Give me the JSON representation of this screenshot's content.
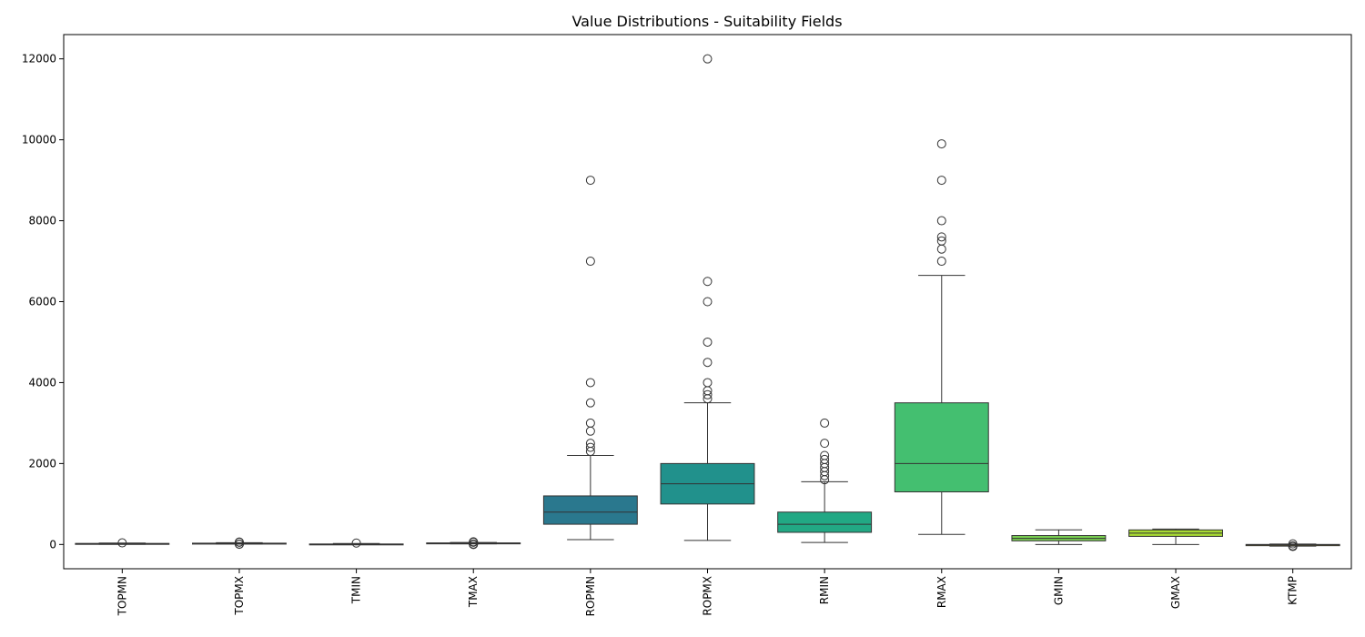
{
  "chart_data": {
    "type": "box",
    "title": "Value Distributions - Suitability Fields",
    "xlabel": "",
    "ylabel": "",
    "ylim": [
      -600,
      12600
    ],
    "yticks": [
      0,
      2000,
      4000,
      6000,
      8000,
      10000,
      12000
    ],
    "categories": [
      "TOPMN",
      "TOPMX",
      "TMIN",
      "TMAX",
      "ROPMN",
      "ROPMX",
      "RMIN",
      "RMAX",
      "GMIN",
      "GMAX",
      "KTMP"
    ],
    "box_colors": [
      "#45085b",
      "#482475",
      "#414487",
      "#355f8d",
      "#2a788e",
      "#21918c",
      "#22a884",
      "#44bf70",
      "#7ad151",
      "#a8db34",
      "#fde725"
    ],
    "boxes": [
      {
        "q1": 12,
        "median": 20,
        "q3": 25,
        "whisker_low": 5,
        "whisker_high": 35,
        "outliers": [
          40
        ]
      },
      {
        "q1": 22,
        "median": 28,
        "q3": 32,
        "whisker_low": 12,
        "whisker_high": 45,
        "outliers": [
          5,
          10,
          55,
          60
        ]
      },
      {
        "q1": 2,
        "median": 8,
        "q3": 12,
        "whisker_low": -5,
        "whisker_high": 25,
        "outliers": [
          35
        ]
      },
      {
        "q1": 25,
        "median": 32,
        "q3": 38,
        "whisker_low": 15,
        "whisker_high": 50,
        "outliers": [
          0,
          5,
          10,
          55,
          60,
          65
        ]
      },
      {
        "q1": 500,
        "median": 800,
        "q3": 1200,
        "whisker_low": 120,
        "whisker_high": 2200,
        "outliers": [
          2300,
          2400,
          2500,
          2800,
          3000,
          3500,
          4000,
          7000,
          9000
        ]
      },
      {
        "q1": 1000,
        "median": 1500,
        "q3": 2000,
        "whisker_low": 100,
        "whisker_high": 3500,
        "outliers": [
          3600,
          3700,
          3800,
          4000,
          4500,
          5000,
          6000,
          6500,
          12000
        ]
      },
      {
        "q1": 300,
        "median": 500,
        "q3": 800,
        "whisker_low": 50,
        "whisker_high": 1550,
        "outliers": [
          1600,
          1700,
          1800,
          1900,
          2000,
          2100,
          2200,
          2500,
          3000
        ]
      },
      {
        "q1": 1300,
        "median": 2000,
        "q3": 3500,
        "whisker_low": 250,
        "whisker_high": 6650,
        "outliers": [
          7000,
          7300,
          7500,
          7600,
          8000,
          9000,
          9900
        ]
      },
      {
        "q1": 90,
        "median": 150,
        "q3": 220,
        "whisker_low": 0,
        "whisker_high": 360,
        "outliers": []
      },
      {
        "q1": 200,
        "median": 280,
        "q3": 360,
        "whisker_low": 0,
        "whisker_high": 380,
        "outliers": []
      },
      {
        "q1": -30,
        "median": -10,
        "q3": 0,
        "whisker_low": -40,
        "whisker_high": 10,
        "outliers": [
          -50,
          -40,
          -35,
          15
        ]
      }
    ]
  }
}
